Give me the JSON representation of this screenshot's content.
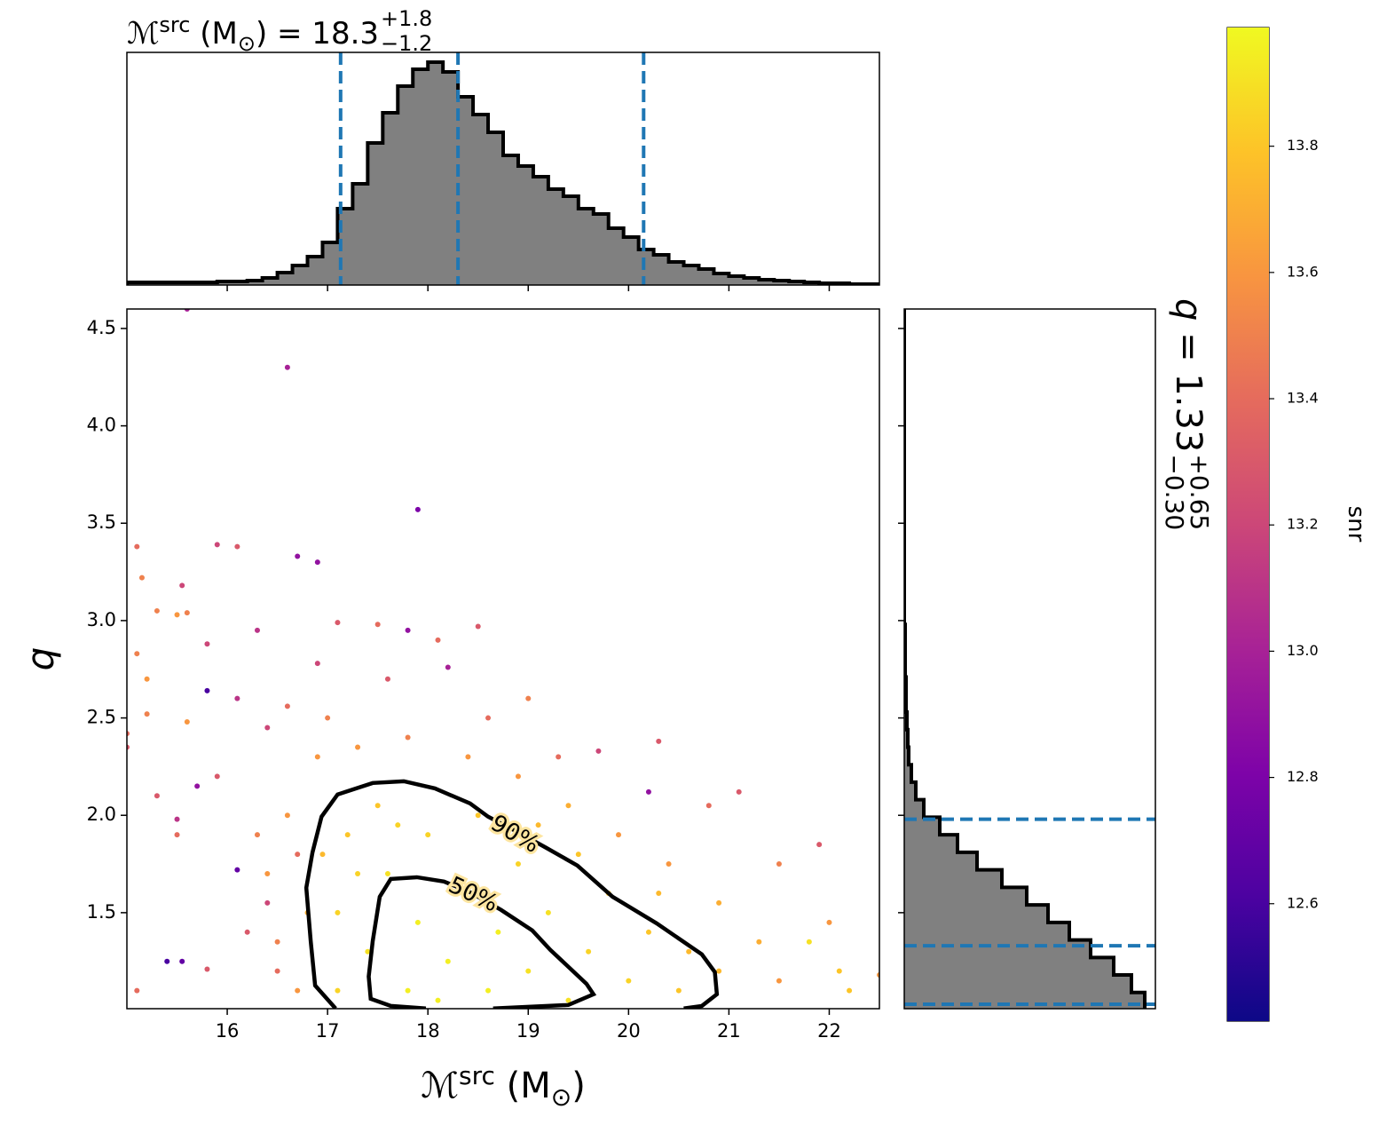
{
  "chart_data": [
    {
      "type": "histogram",
      "orientation": "vertical",
      "title": {
        "symbol": "ℳ",
        "superscript": "src",
        "open": " (M",
        "sun": "⊙",
        "close": ") = 18.3",
        "upper": "+1.8",
        "lower": "−1.2"
      },
      "xlim": [
        15.0,
        22.5
      ],
      "xticks": [
        16,
        17,
        18,
        19,
        20,
        21,
        22
      ],
      "ylim": [
        0,
        262
      ],
      "color": "#808080",
      "quantile_color": "#1f77b4",
      "bins": [
        15.0,
        15.15,
        15.3,
        15.45,
        15.6,
        15.75,
        15.9,
        16.05,
        16.2,
        16.35,
        16.5,
        16.65,
        16.8,
        16.95,
        17.1,
        17.25,
        17.4,
        17.55,
        17.7,
        17.85,
        18.0,
        18.15,
        18.3,
        18.45,
        18.6,
        18.75,
        18.9,
        19.05,
        19.2,
        19.35,
        19.5,
        19.65,
        19.8,
        19.95,
        20.1,
        20.25,
        20.4,
        20.55,
        20.7,
        20.85,
        21.0,
        21.15,
        21.3,
        21.45,
        21.6,
        21.75,
        21.9,
        22.05,
        22.2,
        22.35,
        22.5
      ],
      "counts": [
        3,
        3,
        3,
        3,
        3,
        3,
        4,
        4,
        5,
        8,
        14,
        22,
        32,
        48,
        86,
        114,
        160,
        194,
        224,
        243,
        251,
        240,
        212,
        192,
        172,
        146,
        134,
        122,
        108,
        100,
        86,
        80,
        64,
        54,
        40,
        34,
        26,
        22,
        18,
        13,
        10,
        8,
        6,
        5,
        4,
        3,
        2,
        2,
        1,
        1
      ],
      "quantiles": [
        17.13,
        18.3,
        20.15
      ]
    },
    {
      "type": "scatter",
      "xlabel": {
        "symbol": "ℳ",
        "superscript": "src",
        "open": " (M",
        "sun": "⊙",
        "close": ")"
      },
      "ylabel": "q",
      "xlim": [
        15.0,
        22.5
      ],
      "xticks": [
        16,
        17,
        18,
        19,
        20,
        21,
        22
      ],
      "ylim": [
        1.007,
        4.6
      ],
      "yticks": [
        1.5,
        {
          "value": 2,
          "label": "2.0"
        },
        2.5,
        {
          "value": 3,
          "label": "3.0"
        },
        3.5,
        {
          "value": 4,
          "label": "4.0"
        },
        4.5
      ],
      "x": [
        15.6,
        16.6,
        17.9,
        15.1,
        15.9,
        16.1,
        16.7,
        16.9,
        15.15,
        15.3,
        15.55,
        15.5,
        15.6,
        16.3,
        17.1,
        17.5,
        17.8,
        18.1,
        18.5,
        15.1,
        15.2,
        15.0,
        15.0,
        15.8,
        15.8,
        16.1,
        16.4,
        15.6,
        15.2,
        15.9,
        15.7,
        15.5,
        16.1,
        15.4,
        15.55,
        15.8,
        15.1,
        15.5,
        15.3,
        16.6,
        16.9,
        17.6,
        18.2,
        19.0,
        19.7,
        20.3,
        20.8,
        21.1,
        21.5,
        21.9,
        22.0,
        22.1,
        22.5,
        22.2,
        21.8,
        20.2,
        19.3,
        16.4,
        16.2,
        16.7,
        16.5,
        16.3,
        16.9,
        17.3,
        17.8,
        18.4,
        18.9,
        19.4,
        19.9,
        20.4,
        20.9,
        21.3,
        21.5,
        16.6,
        16.4,
        16.5,
        16.7,
        17.0,
        18.6,
        16.8,
        17.1,
        17.1,
        17.2,
        17.5,
        17.4,
        17.6,
        17.8,
        17.9,
        18.0,
        18.2,
        18.3,
        18.5,
        18.6,
        18.7,
        18.9,
        19.0,
        19.2,
        19.4,
        19.5,
        19.6,
        19.8,
        20.0,
        20.2,
        20.5,
        20.6,
        17.3,
        18.1,
        17.7,
        19.1,
        20.3,
        20.9,
        16.95
      ],
      "y": [
        4.6,
        4.3,
        3.57,
        3.38,
        3.39,
        3.38,
        3.33,
        3.3,
        3.22,
        3.05,
        3.18,
        3.03,
        3.04,
        2.95,
        2.99,
        2.98,
        2.95,
        2.9,
        2.97,
        2.83,
        2.7,
        2.42,
        2.35,
        2.64,
        2.88,
        2.6,
        2.45,
        2.48,
        2.52,
        2.2,
        2.15,
        1.98,
        1.72,
        1.25,
        1.25,
        1.21,
        1.1,
        1.9,
        2.1,
        2.56,
        2.78,
        2.7,
        2.76,
        2.6,
        2.33,
        2.38,
        2.05,
        2.12,
        1.75,
        1.85,
        1.45,
        1.2,
        1.18,
        1.1,
        1.35,
        2.12,
        2.3,
        1.55,
        1.4,
        1.8,
        1.2,
        1.9,
        2.3,
        2.35,
        2.4,
        2.3,
        2.2,
        2.05,
        1.9,
        1.75,
        1.55,
        1.35,
        1.15,
        2.0,
        1.7,
        1.35,
        1.1,
        2.5,
        2.5,
        1.5,
        1.1,
        1.5,
        1.9,
        2.05,
        1.3,
        1.7,
        1.1,
        1.45,
        1.9,
        1.25,
        1.6,
        2.0,
        1.1,
        1.4,
        1.75,
        1.2,
        1.5,
        1.05,
        1.8,
        1.3,
        1.6,
        1.15,
        1.4,
        1.1,
        1.3,
        1.7,
        1.05,
        1.95,
        1.95,
        1.6,
        1.2,
        1.8
      ],
      "c": [
        13.0,
        13.0,
        12.8,
        13.4,
        13.2,
        13.3,
        12.9,
        12.9,
        13.5,
        13.5,
        13.2,
        13.6,
        13.5,
        13.1,
        13.3,
        13.4,
        12.9,
        13.4,
        13.3,
        13.5,
        13.6,
        13.4,
        13.3,
        12.6,
        13.2,
        13.1,
        13.2,
        13.6,
        13.5,
        13.3,
        12.9,
        13.1,
        12.7,
        12.6,
        12.7,
        13.3,
        13.4,
        13.4,
        13.3,
        13.4,
        13.2,
        13.3,
        13.0,
        13.5,
        13.2,
        13.3,
        13.4,
        13.3,
        13.5,
        13.3,
        13.6,
        13.8,
        13.6,
        13.8,
        13.9,
        12.9,
        13.4,
        13.2,
        13.3,
        13.4,
        13.4,
        13.5,
        13.6,
        13.6,
        13.5,
        13.6,
        13.6,
        13.7,
        13.6,
        13.6,
        13.7,
        13.7,
        13.6,
        13.6,
        13.6,
        13.5,
        13.6,
        13.5,
        13.4,
        13.7,
        13.85,
        13.85,
        13.8,
        13.8,
        13.9,
        13.9,
        13.95,
        13.95,
        13.85,
        13.95,
        13.9,
        13.8,
        13.95,
        13.95,
        13.85,
        13.9,
        13.9,
        13.9,
        13.8,
        13.85,
        13.8,
        13.85,
        13.8,
        13.8,
        13.75,
        13.85,
        13.95,
        13.85,
        13.75,
        13.75,
        13.75,
        13.75
      ],
      "contours": [
        {
          "label": "90%",
          "x": [
            17.08,
            16.876,
            16.832,
            16.788,
            16.85,
            16.94,
            17.1,
            17.45,
            17.76,
            18.07,
            18.42,
            18.6,
            18.91,
            19.18,
            19.49,
            19.84,
            20.28,
            20.73,
            20.86,
            20.88,
            20.73,
            20.55
          ],
          "y": [
            1.008,
            1.126,
            1.354,
            1.628,
            1.81,
            1.993,
            2.107,
            2.166,
            2.175,
            2.138,
            2.061,
            1.993,
            1.91,
            1.833,
            1.742,
            1.582,
            1.445,
            1.286,
            1.195,
            1.081,
            1.021,
            1.008
          ]
        },
        {
          "label": "50%",
          "x": [
            17.98,
            17.63,
            17.43,
            17.41,
            17.45,
            17.52,
            17.63,
            17.89,
            18.16,
            18.42,
            18.73,
            19.04,
            19.22,
            19.58,
            19.65,
            19.4,
            18.65
          ],
          "y": [
            1.008,
            1.021,
            1.058,
            1.172,
            1.354,
            1.582,
            1.673,
            1.682,
            1.66,
            1.605,
            1.514,
            1.409,
            1.309,
            1.135,
            1.081,
            1.026,
            1.008
          ]
        }
      ],
      "colorbar": {
        "label": "snr",
        "cmap": "plasma",
        "lim": [
          12.414,
          13.988
        ],
        "ticks": [
          12.6,
          12.8,
          {
            "value": 13,
            "label": "13.0"
          },
          13.2,
          13.4,
          13.6,
          13.8
        ]
      }
    },
    {
      "type": "histogram",
      "orientation": "horizontal",
      "title": {
        "symbol": "q",
        "rest": " = 1.33",
        "upper": "+0.65",
        "lower": "−0.30"
      },
      "ylim": [
        1.007,
        4.6
      ],
      "yticks": [
        1.5,
        2,
        2.5,
        3,
        3.5,
        4,
        4.5
      ],
      "xlim": [
        0,
        283
      ],
      "color": "#808080",
      "quantile_color": "#1f77b4",
      "bins": [
        1.0,
        1.09,
        1.18,
        1.27,
        1.36,
        1.45,
        1.54,
        1.63,
        1.72,
        1.81,
        1.9,
        1.99,
        2.08,
        2.17,
        2.26,
        2.35,
        2.44,
        2.53,
        2.62,
        2.71,
        2.8,
        2.89,
        2.98,
        3.07,
        3.16,
        3.25,
        3.34,
        3.43,
        3.52,
        3.61,
        3.7,
        3.79,
        3.88,
        3.97,
        4.06,
        4.15,
        4.24,
        4.33,
        4.42,
        4.51,
        4.6
      ],
      "counts": [
        271,
        256,
        236,
        210,
        186,
        162,
        138,
        110,
        82,
        60,
        40,
        22,
        13,
        8,
        5,
        4,
        3,
        2,
        2,
        1,
        1,
        1,
        0,
        0,
        0,
        0,
        0,
        0,
        0,
        0,
        0,
        0,
        0,
        0,
        0,
        0,
        0,
        0,
        0,
        0
      ],
      "quantiles": [
        1.03,
        1.33,
        1.98
      ]
    }
  ]
}
